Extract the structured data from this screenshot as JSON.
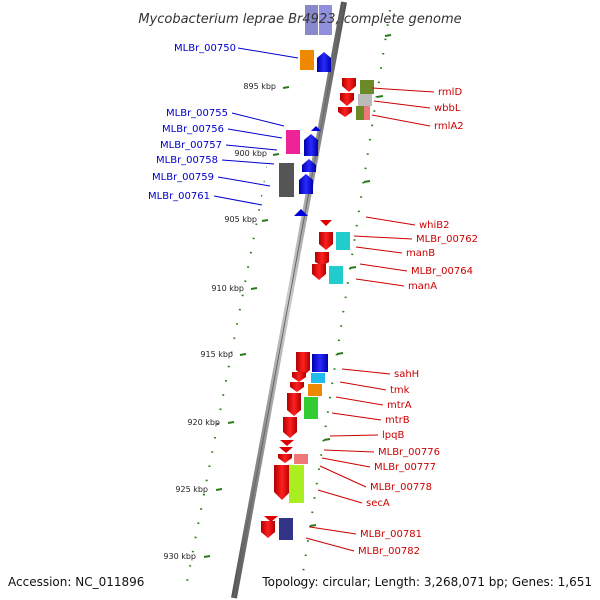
{
  "title": "Mycobacterium leprae Br4923, complete genome",
  "footer": {
    "accession": "Accession: NC_011896",
    "summary": "Topology: circular; Length: 3,268,071 bp; Genes: 1,651"
  },
  "colors": {
    "forward_strand": "#0000dd",
    "reverse_strand": "#dd0000",
    "tick": "#2a7a1a",
    "backbone": "#888888"
  },
  "scale": {
    "unit": "kbp",
    "ticks": [
      {
        "kbp": 895,
        "label": "895 kbp"
      },
      {
        "kbp": 900,
        "label": "900 kbp"
      },
      {
        "kbp": 905,
        "label": "905 kbp"
      },
      {
        "kbp": 910,
        "label": "910 kbp"
      },
      {
        "kbp": 915,
        "label": "915 kbp"
      },
      {
        "kbp": 920,
        "label": "920 kbp"
      },
      {
        "kbp": 925,
        "label": "925 kbp"
      },
      {
        "kbp": 930,
        "label": "930 kbp"
      }
    ]
  },
  "forward_labels": [
    "MLBr_00750",
    "MLBr_00755",
    "MLBr_00756",
    "MLBr_00757",
    "MLBr_00758",
    "MLBr_00759",
    "MLBr_00761"
  ],
  "reverse_labels": [
    "rmlD",
    "wbbL",
    "rmlA2",
    "whiB2",
    "MLBr_00762",
    "manB",
    "MLBr_00764",
    "manA",
    "sahH",
    "tmk",
    "mtrA",
    "mtrB",
    "lpqB",
    "MLBr_00776",
    "MLBr_00777",
    "MLBr_00778",
    "secA",
    "MLBr_00781",
    "MLBr_00782"
  ]
}
